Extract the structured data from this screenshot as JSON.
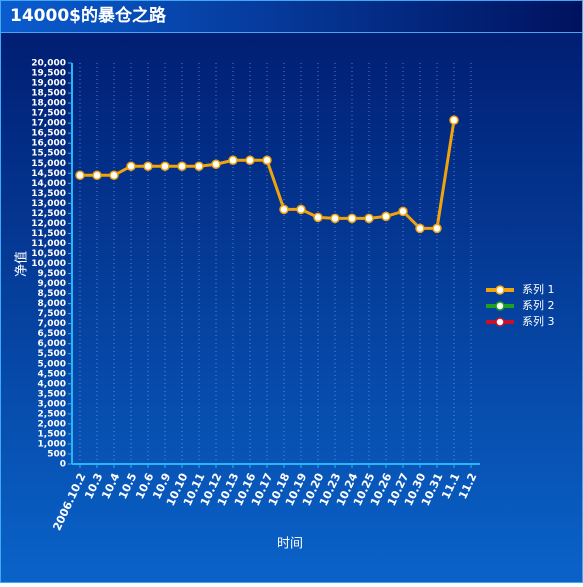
{
  "chart_data": {
    "type": "line",
    "title": "14000$的暴仓之路",
    "x_label": "时间",
    "y_label": "净值",
    "categories": [
      "2006.10.2",
      "10.3",
      "10.4",
      "10.5",
      "10.6",
      "10.9",
      "10.10",
      "10.11",
      "10.12",
      "10.13",
      "10.16",
      "10.17",
      "10.18",
      "10.19",
      "10.20",
      "10.23",
      "10.24",
      "10.25",
      "10.26",
      "10.27",
      "10.30",
      "10.31",
      "11.1",
      "11.2"
    ],
    "series": [
      {
        "name": "系列 1",
        "color": "#f0a30a",
        "values": [
          14400,
          14400,
          14400,
          14850,
          14850,
          14850,
          14850,
          14850,
          14950,
          15150,
          15150,
          15150,
          12700,
          12700,
          12300,
          12250,
          12250,
          12250,
          12350,
          12600,
          11750,
          11750,
          17150,
          null
        ]
      },
      {
        "name": "系列 2",
        "color": "#1ea11e",
        "values": [
          null,
          null,
          null,
          null,
          null,
          null,
          null,
          null,
          null,
          null,
          null,
          null,
          null,
          null,
          null,
          null,
          null,
          null,
          null,
          null,
          null,
          null,
          null,
          null
        ]
      },
      {
        "name": "系列 3",
        "color": "#c8102e",
        "values": [
          null,
          null,
          null,
          null,
          null,
          null,
          null,
          null,
          null,
          null,
          null,
          null,
          null,
          null,
          null,
          null,
          null,
          null,
          null,
          null,
          null,
          null,
          null,
          null
        ]
      }
    ],
    "ylim": [
      0,
      20000
    ],
    "yticks": [
      0,
      500,
      {
        "value": 1000,
        "label": "1,000"
      },
      {
        "value": 1500,
        "label": "1,500"
      },
      {
        "value": 2000,
        "label": "2,000"
      },
      {
        "value": 2500,
        "label": "2,500"
      },
      {
        "value": 3000,
        "label": "3,000"
      },
      {
        "value": 3500,
        "label": "3,500"
      },
      {
        "value": 4000,
        "label": "4,000"
      },
      {
        "value": 4500,
        "label": "4,500"
      },
      {
        "value": 5000,
        "label": "5,000"
      },
      {
        "value": 5500,
        "label": "5,500"
      },
      {
        "value": 6000,
        "label": "6,000"
      },
      {
        "value": 6500,
        "label": "6,500"
      },
      {
        "value": 7000,
        "label": "7,000"
      },
      {
        "value": 7500,
        "label": "7,500"
      },
      {
        "value": 8000,
        "label": "8,000"
      },
      {
        "value": 8500,
        "label": "8,500"
      },
      {
        "value": 9000,
        "label": "9,000"
      },
      {
        "value": 9500,
        "label": "9,500"
      },
      {
        "value": 10000,
        "label": "10,000"
      },
      {
        "value": 10500,
        "label": "10,500"
      },
      {
        "value": 11000,
        "label": "11,000"
      },
      {
        "value": 11500,
        "label": "11,500"
      },
      {
        "value": 12000,
        "label": "12,000"
      },
      {
        "value": 12500,
        "label": "12,500"
      },
      {
        "value": 13000,
        "label": "13,000"
      },
      {
        "value": 13500,
        "label": "13,500"
      },
      {
        "value": 14000,
        "label": "14,000"
      },
      {
        "value": 14500,
        "label": "14,500"
      },
      {
        "value": 15000,
        "label": "15,000"
      },
      {
        "value": 15500,
        "label": "15,500"
      },
      {
        "value": 16000,
        "label": "16,000"
      },
      {
        "value": 16500,
        "label": "16,500"
      },
      {
        "value": 17000,
        "label": "17,000"
      },
      {
        "value": 17500,
        "label": "17,500"
      },
      {
        "value": 18000,
        "label": "18,000"
      },
      {
        "value": 18500,
        "label": "18,500"
      },
      {
        "value": 19000,
        "label": "19,000"
      },
      {
        "value": 19500,
        "label": "19,500"
      },
      {
        "value": 20000,
        "label": "20,000"
      }
    ],
    "grid": "x",
    "legend": "right"
  }
}
